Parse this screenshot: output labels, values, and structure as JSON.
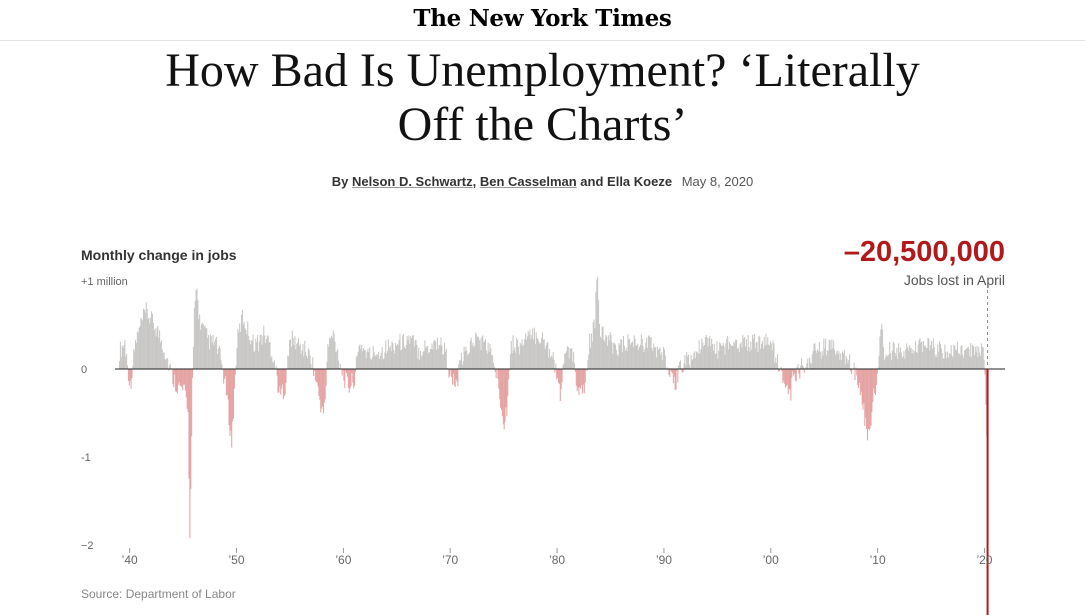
{
  "masthead": {
    "title": "The New York Times"
  },
  "article": {
    "headline": "How Bad Is Unemployment? ‘Literally Off the Charts’",
    "byline_prefix": "By ",
    "authors": [
      "Nelson D. Schwartz",
      "Ben Casselman",
      "Ella Koeze"
    ],
    "separator_comma": ", ",
    "separator_and": " and ",
    "date": "May 8, 2020"
  },
  "highlight": {
    "value": "–20,500,000",
    "caption": "Jobs lost in April"
  },
  "source": "Source: Department of Labor",
  "colors": {
    "gain": "#c8c7c5",
    "loss": "#e5a3a3",
    "highlight": "#b1191a",
    "axis": "#222222"
  },
  "chart_data": {
    "type": "bar",
    "title": "Monthly change in jobs",
    "units": "millions of jobs per month",
    "y_tick_labels": [
      {
        "value": 1,
        "label": "+1 million"
      },
      {
        "value": 0,
        "label": "0"
      },
      {
        "value": -1,
        "label": "-1"
      },
      {
        "value": -2,
        "label": "−2"
      }
    ],
    "ylim": [
      -2,
      1
    ],
    "x_start_year": 1939,
    "x_end_year": 2020.33,
    "x_tick_labels": [
      {
        "year": 1940,
        "label": "’40"
      },
      {
        "year": 1950,
        "label": "’50"
      },
      {
        "year": 1960,
        "label": "’60"
      },
      {
        "year": 1970,
        "label": "’70"
      },
      {
        "year": 1980,
        "label": "’80"
      },
      {
        "year": 1990,
        "label": "’90"
      },
      {
        "year": 2000,
        "label": "’00"
      },
      {
        "year": 2010,
        "label": "’10"
      },
      {
        "year": 2020,
        "label": "’20"
      }
    ],
    "annotation": {
      "year": 2020.29,
      "value": -20.5,
      "label": "Jobs lost in April"
    },
    "series_points": [
      [
        1939.0,
        0.2
      ],
      [
        1939.5,
        0.3
      ],
      [
        1940.0,
        -0.2
      ],
      [
        1940.5,
        0.3
      ],
      [
        1941.0,
        0.5
      ],
      [
        1941.5,
        0.65
      ],
      [
        1942.0,
        0.55
      ],
      [
        1942.5,
        0.45
      ],
      [
        1943.0,
        0.3
      ],
      [
        1943.5,
        0.1
      ],
      [
        1944.0,
        -0.1
      ],
      [
        1944.5,
        -0.2
      ],
      [
        1945.0,
        -0.25
      ],
      [
        1945.4,
        -0.4
      ],
      [
        1945.6,
        -1.95
      ],
      [
        1945.8,
        -0.35
      ],
      [
        1946.0,
        0.6
      ],
      [
        1946.2,
        0.95
      ],
      [
        1946.5,
        0.55
      ],
      [
        1947.0,
        0.4
      ],
      [
        1947.5,
        0.3
      ],
      [
        1948.0,
        0.3
      ],
      [
        1948.5,
        0.1
      ],
      [
        1949.0,
        -0.25
      ],
      [
        1949.5,
        -0.85
      ],
      [
        1950.0,
        0.3
      ],
      [
        1950.5,
        0.6
      ],
      [
        1951.0,
        0.45
      ],
      [
        1951.5,
        0.3
      ],
      [
        1952.0,
        0.3
      ],
      [
        1952.5,
        0.4
      ],
      [
        1953.0,
        0.3
      ],
      [
        1953.5,
        0.1
      ],
      [
        1954.0,
        -0.3
      ],
      [
        1954.5,
        -0.2
      ],
      [
        1955.0,
        0.35
      ],
      [
        1955.5,
        0.3
      ],
      [
        1956.0,
        0.25
      ],
      [
        1956.5,
        0.2
      ],
      [
        1957.0,
        0.1
      ],
      [
        1957.5,
        -0.2
      ],
      [
        1958.0,
        -0.5
      ],
      [
        1958.2,
        -0.45
      ],
      [
        1958.5,
        0.25
      ],
      [
        1959.0,
        0.4
      ],
      [
        1959.5,
        0.15
      ],
      [
        1960.0,
        -0.1
      ],
      [
        1960.5,
        -0.2
      ],
      [
        1961.0,
        -0.1
      ],
      [
        1961.5,
        0.3
      ],
      [
        1962.0,
        0.2
      ],
      [
        1962.5,
        0.15
      ],
      [
        1963.0,
        0.2
      ],
      [
        1963.5,
        0.2
      ],
      [
        1964.0,
        0.25
      ],
      [
        1964.5,
        0.25
      ],
      [
        1965.0,
        0.3
      ],
      [
        1965.5,
        0.3
      ],
      [
        1966.0,
        0.35
      ],
      [
        1966.5,
        0.3
      ],
      [
        1967.0,
        0.2
      ],
      [
        1967.5,
        0.25
      ],
      [
        1968.0,
        0.25
      ],
      [
        1968.5,
        0.3
      ],
      [
        1969.0,
        0.3
      ],
      [
        1969.5,
        0.2
      ],
      [
        1970.0,
        -0.1
      ],
      [
        1970.5,
        -0.2
      ],
      [
        1971.0,
        0.1
      ],
      [
        1971.5,
        0.2
      ],
      [
        1972.0,
        0.3
      ],
      [
        1972.5,
        0.35
      ],
      [
        1973.0,
        0.3
      ],
      [
        1973.5,
        0.25
      ],
      [
        1974.0,
        0.1
      ],
      [
        1974.5,
        -0.2
      ],
      [
        1975.0,
        -0.6
      ],
      [
        1975.3,
        -0.4
      ],
      [
        1975.6,
        0.25
      ],
      [
        1976.0,
        0.3
      ],
      [
        1976.5,
        0.25
      ],
      [
        1977.0,
        0.35
      ],
      [
        1977.5,
        0.35
      ],
      [
        1978.0,
        0.4
      ],
      [
        1978.5,
        0.35
      ],
      [
        1979.0,
        0.25
      ],
      [
        1979.5,
        0.2
      ],
      [
        1980.0,
        -0.1
      ],
      [
        1980.3,
        -0.4
      ],
      [
        1980.6,
        0.2
      ],
      [
        1981.0,
        0.2
      ],
      [
        1981.5,
        0.1
      ],
      [
        1982.0,
        -0.3
      ],
      [
        1982.5,
        -0.25
      ],
      [
        1983.0,
        0.3
      ],
      [
        1983.5,
        0.5
      ],
      [
        1983.7,
        1.15
      ],
      [
        1984.0,
        0.4
      ],
      [
        1984.5,
        0.35
      ],
      [
        1985.0,
        0.3
      ],
      [
        1985.5,
        0.25
      ],
      [
        1986.0,
        0.25
      ],
      [
        1986.5,
        0.3
      ],
      [
        1987.0,
        0.3
      ],
      [
        1987.5,
        0.3
      ],
      [
        1988.0,
        0.3
      ],
      [
        1988.5,
        0.3
      ],
      [
        1989.0,
        0.25
      ],
      [
        1989.5,
        0.2
      ],
      [
        1990.0,
        0.15
      ],
      [
        1990.5,
        -0.1
      ],
      [
        1991.0,
        -0.2
      ],
      [
        1991.5,
        0.05
      ],
      [
        1992.0,
        0.1
      ],
      [
        1992.5,
        0.1
      ],
      [
        1993.0,
        0.2
      ],
      [
        1993.5,
        0.25
      ],
      [
        1994.0,
        0.3
      ],
      [
        1994.5,
        0.3
      ],
      [
        1995.0,
        0.2
      ],
      [
        1995.5,
        0.25
      ],
      [
        1996.0,
        0.3
      ],
      [
        1996.5,
        0.3
      ],
      [
        1997.0,
        0.3
      ],
      [
        1997.5,
        0.3
      ],
      [
        1998.0,
        0.3
      ],
      [
        1998.5,
        0.3
      ],
      [
        1999.0,
        0.3
      ],
      [
        1999.5,
        0.3
      ],
      [
        2000.0,
        0.3
      ],
      [
        2000.5,
        0.1
      ],
      [
        2001.0,
        -0.1
      ],
      [
        2001.5,
        -0.2
      ],
      [
        2001.8,
        -0.3
      ],
      [
        2002.0,
        -0.1
      ],
      [
        2002.5,
        -0.05
      ],
      [
        2003.0,
        0.05
      ],
      [
        2003.5,
        0.1
      ],
      [
        2004.0,
        0.2
      ],
      [
        2004.5,
        0.2
      ],
      [
        2005.0,
        0.25
      ],
      [
        2005.5,
        0.25
      ],
      [
        2006.0,
        0.2
      ],
      [
        2006.5,
        0.2
      ],
      [
        2007.0,
        0.1
      ],
      [
        2007.5,
        0.05
      ],
      [
        2008.0,
        -0.1
      ],
      [
        2008.5,
        -0.3
      ],
      [
        2008.8,
        -0.6
      ],
      [
        2009.0,
        -0.78
      ],
      [
        2009.3,
        -0.7
      ],
      [
        2009.6,
        -0.3
      ],
      [
        2010.0,
        -0.05
      ],
      [
        2010.3,
        0.55
      ],
      [
        2010.6,
        0.1
      ],
      [
        2011.0,
        0.2
      ],
      [
        2012.0,
        0.2
      ],
      [
        2013.0,
        0.2
      ],
      [
        2014.0,
        0.25
      ],
      [
        2015.0,
        0.25
      ],
      [
        2016.0,
        0.2
      ],
      [
        2017.0,
        0.2
      ],
      [
        2018.0,
        0.2
      ],
      [
        2019.0,
        0.2
      ],
      [
        2019.9,
        0.25
      ],
      [
        2020.2,
        -0.9
      ]
    ]
  }
}
